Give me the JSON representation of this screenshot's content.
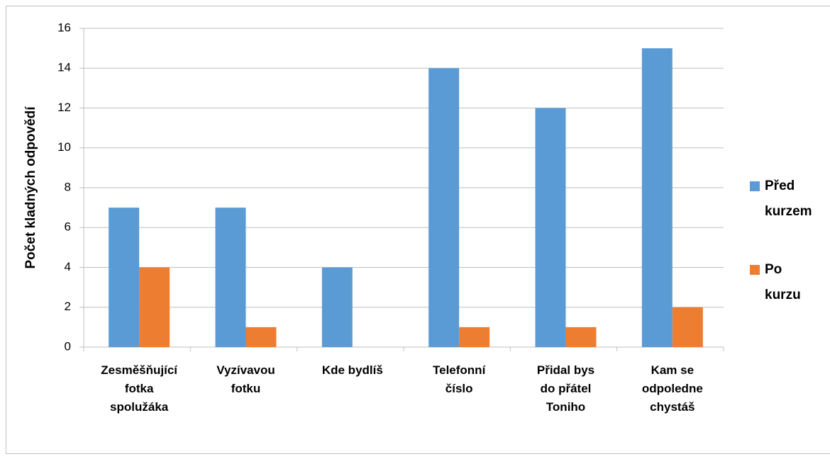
{
  "chart_data": {
    "type": "bar",
    "y_label": "Počet kladných odpovědí",
    "categories": [
      "Zesměšňující\nfotka\nspolužáka",
      "Vyzívavou\nfotku",
      "Kde bydlíš",
      "Telefonní\nčíslo",
      "Přidal bys\ndo přátel\nToniho",
      "Kam se\nodpoledne\nchystáš"
    ],
    "series": [
      {
        "name": "Před\nkurzem",
        "color": "#5b9bd5",
        "values": [
          7,
          7,
          4,
          14,
          12,
          15
        ]
      },
      {
        "name": "Po\nkurzu",
        "color": "#ed7d31",
        "values": [
          4,
          1,
          0,
          1,
          1,
          2
        ]
      }
    ],
    "ylim": [
      0,
      16
    ],
    "yticks": [
      0,
      2,
      4,
      6,
      8,
      10,
      12,
      14,
      16
    ],
    "grid": true,
    "legend": "right"
  }
}
